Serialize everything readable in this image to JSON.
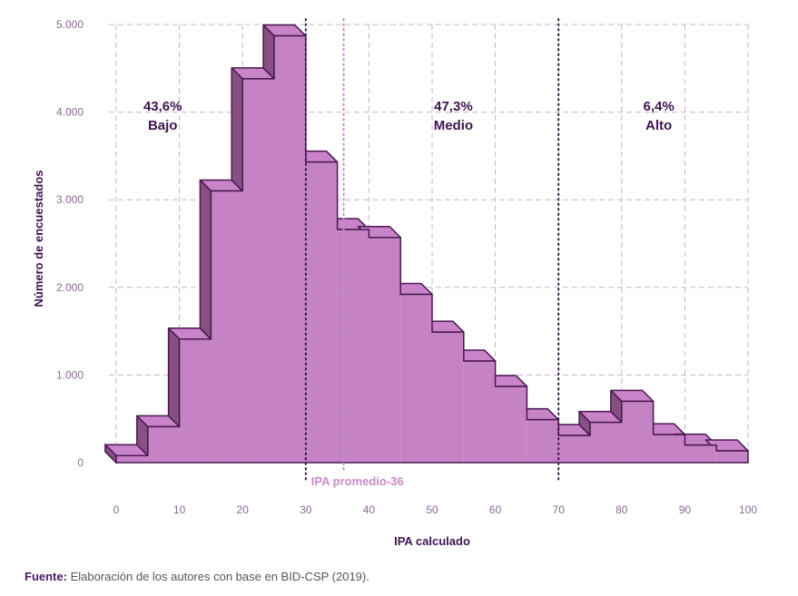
{
  "chart_data": {
    "type": "bar",
    "subtype": "histogram",
    "xlabel": "IPA calculado",
    "ylabel": "Número de encuestados",
    "xlim": [
      0,
      100
    ],
    "ylim": [
      0,
      5000
    ],
    "x_ticks": [
      0,
      10,
      20,
      30,
      40,
      50,
      60,
      70,
      80,
      90,
      100
    ],
    "x_tick_labels": [
      "0",
      "10",
      "20",
      "30",
      "40",
      "50",
      "60",
      "70",
      "80",
      "90",
      "100"
    ],
    "y_ticks": [
      0,
      1000,
      2000,
      3000,
      4000,
      5000
    ],
    "y_tick_labels": [
      "0",
      "1.000",
      "2.000",
      "3.000",
      "4.000",
      "5.000"
    ],
    "grid": true,
    "bin_width": 5,
    "bins": [
      0,
      5,
      10,
      15,
      20,
      25,
      30,
      35,
      40,
      45,
      50,
      55,
      60,
      65,
      70,
      75,
      80,
      85,
      90,
      95
    ],
    "values": [
      80,
      410,
      1410,
      3100,
      4380,
      4870,
      3430,
      2660,
      2570,
      1920,
      1490,
      1160,
      870,
      490,
      310,
      460,
      700,
      320,
      200,
      135
    ],
    "reference_lines": [
      {
        "x": 30,
        "style": "dotted",
        "color": "#3d1450",
        "label": ""
      },
      {
        "x": 36,
        "style": "dotted",
        "color": "#c88ac8",
        "label": "IPA promedio-36"
      },
      {
        "x": 70,
        "style": "dotted",
        "color": "#3d1450",
        "label": ""
      }
    ],
    "annotations": [
      {
        "pct": "43,6%",
        "name": "Bajo",
        "x": 6.5
      },
      {
        "pct": "47,3%",
        "name": "Medio",
        "x": 52.5
      },
      {
        "pct": "6,4%",
        "name": "Alto",
        "x": 85
      }
    ],
    "colors": {
      "front": "#c583c5",
      "top": "#c983c9",
      "side": "#875083",
      "outline": "#4a1850",
      "grid": "#c9b3cc"
    }
  },
  "source": {
    "label": "Fuente:",
    "text": " Elaboración de los autores con base en BID-CSP (2019)."
  }
}
